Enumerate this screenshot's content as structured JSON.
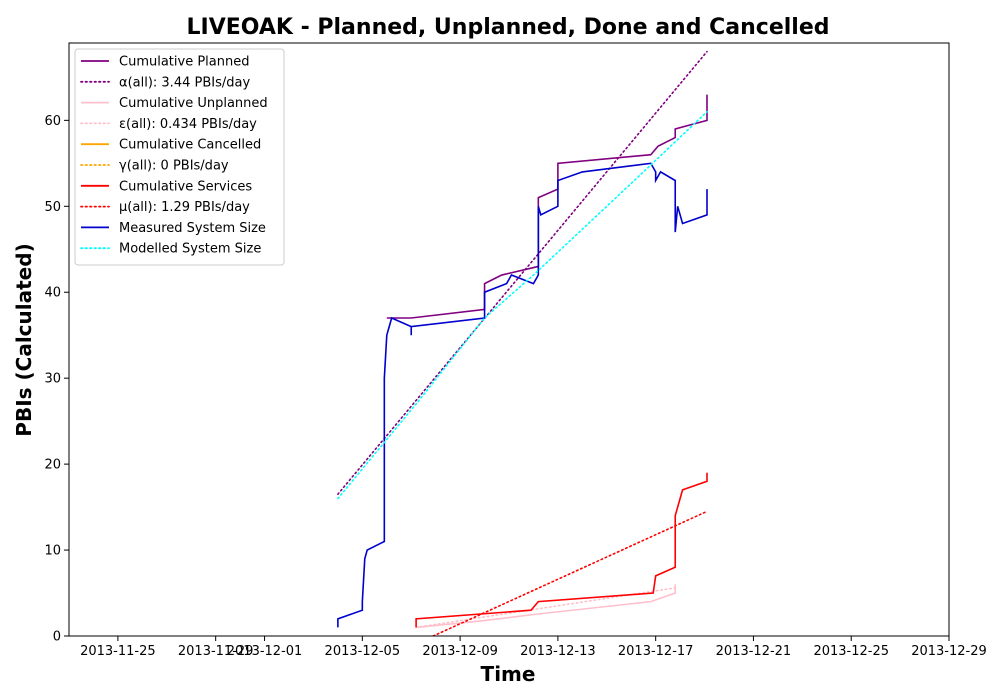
{
  "chart_data": {
    "type": "line",
    "title": "LIVEOAK - Planned, Unplanned, Done  and Cancelled",
    "xlabel": "Time",
    "ylabel": "PBIs (Calculated)",
    "x_type": "date",
    "xlim": [
      "2013-11-23",
      "2013-12-29"
    ],
    "ylim": [
      0,
      69
    ],
    "x_ticks": [
      "2013-11-25",
      "2013-11-29",
      "2013-12-01",
      "2013-12-05",
      "2013-12-09",
      "2013-12-13",
      "2013-12-17",
      "2013-12-21",
      "2013-12-25",
      "2013-12-29"
    ],
    "y_ticks": [
      0,
      10,
      20,
      30,
      40,
      50,
      60
    ],
    "grid": false,
    "legend_position": "top-left",
    "series": [
      {
        "name": "Cumulative Planned",
        "color": "#800080",
        "dash": "solid",
        "points": [
          [
            "2013-12-06.0",
            37
          ],
          [
            "2013-12-06.5",
            37
          ],
          [
            "2013-12-07.0",
            37
          ],
          [
            "2013-12-10.0",
            38
          ],
          [
            "2013-12-10.0",
            41
          ],
          [
            "2013-12-10.7",
            42
          ],
          [
            "2013-12-12.2",
            43
          ],
          [
            "2013-12-12.2",
            50
          ],
          [
            "2013-12-12.2",
            51
          ],
          [
            "2013-12-13.0",
            52
          ],
          [
            "2013-12-13.0",
            55
          ],
          [
            "2013-12-16.8",
            56
          ],
          [
            "2013-12-17.1",
            57
          ],
          [
            "2013-12-17.8",
            58
          ],
          [
            "2013-12-17.8",
            59
          ],
          [
            "2013-12-19.1",
            60
          ],
          [
            "2013-12-19.1",
            63
          ]
        ]
      },
      {
        "name": "α(all): 3.44 PBIs/day",
        "color": "#800080",
        "dash": "dotted",
        "points": [
          [
            "2013-12-04.0",
            16.5
          ],
          [
            "2013-12-19.1",
            68
          ]
        ]
      },
      {
        "name": "Cumulative Unplanned",
        "color": "#ffc0cb",
        "dash": "solid",
        "points": [
          [
            "2013-12-07.2",
            1
          ],
          [
            "2013-12-10.0",
            1.8
          ],
          [
            "2013-12-12.0",
            2.5
          ],
          [
            "2013-12-16.8",
            4
          ],
          [
            "2013-12-17.8",
            5
          ],
          [
            "2013-12-17.8",
            6
          ]
        ]
      },
      {
        "name": "ε(all): 0.434 PBIs/day",
        "color": "#ffc0cb",
        "dash": "dotted",
        "points": [
          [
            "2013-12-07.2",
            1
          ],
          [
            "2013-12-17.8",
            5.6
          ]
        ]
      },
      {
        "name": "Cumulative Cancelled",
        "color": "#ffa500",
        "dash": "solid",
        "points": []
      },
      {
        "name": "γ(all): 0 PBIs/day",
        "color": "#ffa500",
        "dash": "dotted",
        "points": []
      },
      {
        "name": "Cumulative Services",
        "color": "#ff0000",
        "dash": "solid",
        "points": [
          [
            "2013-12-07.2",
            1
          ],
          [
            "2013-12-07.2",
            2
          ],
          [
            "2013-12-11.9",
            3
          ],
          [
            "2013-12-12.2",
            4
          ],
          [
            "2013-12-16.9",
            5
          ],
          [
            "2013-12-17.0",
            7
          ],
          [
            "2013-12-17.8",
            8
          ],
          [
            "2013-12-17.8",
            14
          ],
          [
            "2013-12-18.0",
            16
          ],
          [
            "2013-12-18.1",
            17
          ],
          [
            "2013-12-19.1",
            18
          ],
          [
            "2013-12-19.1",
            19
          ]
        ]
      },
      {
        "name": "μ(all): 1.29 PBIs/day",
        "color": "#ff0000",
        "dash": "dotted",
        "points": [
          [
            "2013-12-07.9",
            0
          ],
          [
            "2013-12-19.1",
            14.5
          ]
        ]
      },
      {
        "name": "Measured System Size",
        "color": "#0000cd",
        "dash": "solid",
        "points": [
          [
            "2013-12-04.0",
            1
          ],
          [
            "2013-12-04.0",
            2
          ],
          [
            "2013-12-05.0",
            3
          ],
          [
            "2013-12-05.0",
            4
          ],
          [
            "2013-12-05.1",
            9
          ],
          [
            "2013-12-05.2",
            10
          ],
          [
            "2013-12-05.9",
            11
          ],
          [
            "2013-12-05.9",
            30
          ],
          [
            "2013-12-06.0",
            35
          ],
          [
            "2013-12-06.1",
            36
          ],
          [
            "2013-12-06.2",
            37
          ],
          [
            "2013-12-07.0",
            36
          ],
          [
            "2013-12-07.0",
            35
          ],
          [
            "2013-12-07.0",
            36
          ],
          [
            "2013-12-10.0",
            37
          ],
          [
            "2013-12-10.0",
            40
          ],
          [
            "2013-12-10.9",
            41
          ],
          [
            "2013-12-11.1",
            42
          ],
          [
            "2013-12-12.0",
            41
          ],
          [
            "2013-12-12.2",
            42
          ],
          [
            "2013-12-12.2",
            49
          ],
          [
            "2013-12-12.2",
            50
          ],
          [
            "2013-12-12.3",
            49
          ],
          [
            "2013-12-13.0",
            50
          ],
          [
            "2013-12-13.0",
            53
          ],
          [
            "2013-12-14.0",
            54
          ],
          [
            "2013-12-16.8",
            55
          ],
          [
            "2013-12-17.0",
            54
          ],
          [
            "2013-12-17.0",
            53
          ],
          [
            "2013-12-17.2",
            54
          ],
          [
            "2013-12-17.8",
            53
          ],
          [
            "2013-12-17.8",
            47
          ],
          [
            "2013-12-17.9",
            50
          ],
          [
            "2013-12-18.1",
            48
          ],
          [
            "2013-12-19.1",
            49
          ],
          [
            "2013-12-19.1",
            52
          ]
        ]
      },
      {
        "name": "Modelled System Size",
        "color": "#00ffff",
        "dash": "dotted",
        "points": [
          [
            "2013-12-04.0",
            16
          ],
          [
            "2013-12-07.2",
            27
          ],
          [
            "2013-12-10.0",
            37
          ],
          [
            "2013-12-12.0",
            42
          ],
          [
            "2013-12-16.5",
            54
          ],
          [
            "2013-12-19.1",
            61
          ]
        ]
      }
    ]
  }
}
